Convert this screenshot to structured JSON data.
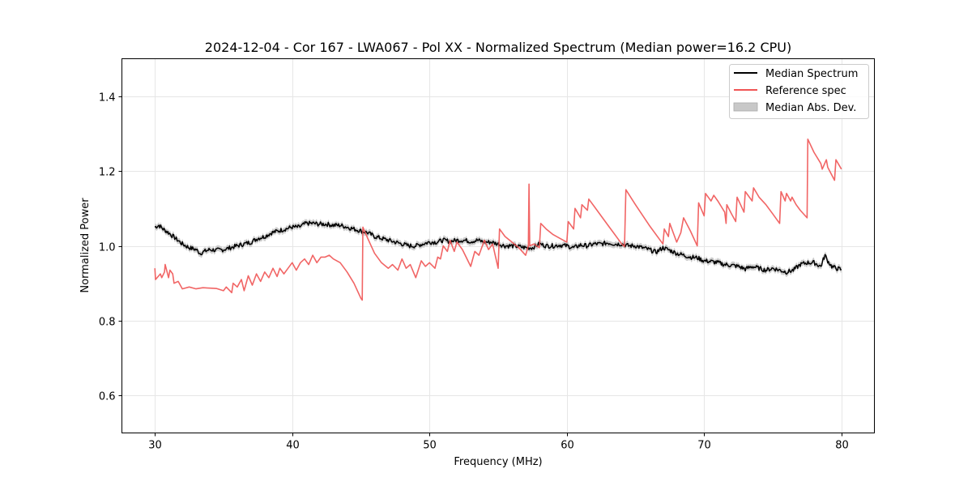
{
  "chart_data": {
    "type": "line",
    "title": "2024-12-04 - Cor 167 - LWA067 - Pol XX - Normalized Spectrum (Median power=16.2 CPU)",
    "xlabel": "Frequency (MHz)",
    "ylabel": "Normalized Power",
    "xlim": [
      27.6,
      82.4
    ],
    "ylim": [
      0.5,
      1.5
    ],
    "xticks": [
      30,
      40,
      50,
      60,
      70,
      80
    ],
    "xtick_labels": [
      "30",
      "40",
      "50",
      "60",
      "70",
      "80"
    ],
    "yticks": [
      0.6,
      0.8,
      1.0,
      1.2,
      1.4
    ],
    "ytick_labels": [
      "0.6",
      "0.8",
      "1.0",
      "1.2",
      "1.4"
    ],
    "grid": true,
    "legend_position": "top-right",
    "legend": [
      {
        "label": "Median Spectrum",
        "kind": "line",
        "color": "#000000"
      },
      {
        "label": "Reference spec",
        "kind": "line",
        "color": "#f05454"
      },
      {
        "label": "Median Abs. Dev.",
        "kind": "band",
        "color": "#c8c8c8"
      }
    ],
    "series": [
      {
        "name": "Median Spectrum",
        "color": "#000000",
        "x": [
          30.0,
          30.3,
          30.6,
          31.0,
          31.5,
          32.0,
          32.5,
          33.0,
          33.3,
          33.6,
          34.0,
          34.5,
          35.0,
          35.5,
          36.0,
          36.5,
          37.0,
          37.5,
          38.0,
          38.5,
          39.0,
          39.5,
          40.0,
          40.5,
          41.0,
          41.5,
          42.0,
          42.5,
          43.0,
          43.5,
          44.0,
          44.5,
          45.0,
          45.5,
          46.0,
          46.5,
          47.0,
          47.5,
          48.0,
          48.5,
          49.0,
          49.5,
          50.0,
          50.5,
          51.0,
          51.5,
          52.0,
          52.5,
          53.0,
          53.5,
          54.0,
          54.5,
          55.0,
          55.5,
          56.0,
          56.5,
          57.0,
          57.5,
          58.0,
          58.5,
          59.0,
          59.5,
          60.0,
          60.5,
          61.0,
          61.5,
          62.0,
          62.5,
          63.0,
          63.5,
          64.0,
          64.5,
          65.0,
          65.5,
          66.0,
          66.5,
          67.0,
          67.5,
          68.0,
          68.5,
          69.0,
          69.5,
          70.0,
          70.5,
          71.0,
          71.5,
          72.0,
          72.5,
          73.0,
          73.5,
          74.0,
          74.5,
          75.0,
          75.5,
          76.0,
          76.5,
          77.0,
          77.5,
          78.0,
          78.5,
          78.8,
          79.0,
          79.3,
          79.6,
          80.0
        ],
        "y": [
          1.05,
          1.055,
          1.045,
          1.035,
          1.02,
          1.005,
          0.995,
          0.99,
          0.98,
          0.985,
          0.99,
          0.988,
          0.99,
          0.995,
          1.0,
          1.005,
          1.01,
          1.02,
          1.025,
          1.035,
          1.04,
          1.045,
          1.05,
          1.05,
          1.06,
          1.06,
          1.058,
          1.058,
          1.055,
          1.055,
          1.05,
          1.045,
          1.04,
          1.035,
          1.025,
          1.02,
          1.015,
          1.01,
          1.005,
          1.0,
          1.0,
          1.005,
          1.01,
          1.01,
          1.015,
          1.012,
          1.015,
          1.015,
          1.012,
          1.015,
          1.01,
          1.01,
          1.005,
          1.0,
          1.0,
          0.998,
          0.995,
          0.995,
          1.005,
          1.0,
          1.0,
          1.002,
          1.0,
          0.995,
          1.002,
          1.0,
          1.005,
          1.005,
          1.008,
          1.005,
          1.005,
          1.0,
          1.0,
          0.995,
          0.99,
          0.983,
          0.995,
          0.988,
          0.98,
          0.975,
          0.97,
          0.968,
          0.96,
          0.958,
          0.955,
          0.95,
          0.948,
          0.945,
          0.938,
          0.945,
          0.94,
          0.935,
          0.94,
          0.935,
          0.93,
          0.935,
          0.95,
          0.955,
          0.955,
          0.945,
          0.975,
          0.96,
          0.945,
          0.94,
          0.937
        ]
      },
      {
        "name": "Reference spec",
        "color": "#f05454",
        "x": [
          30.0,
          30.05,
          30.4,
          30.5,
          30.7,
          30.75,
          31.0,
          31.1,
          31.3,
          31.4,
          31.7,
          32.0,
          32.5,
          33.0,
          33.5,
          34.0,
          34.5,
          35.0,
          35.2,
          35.6,
          35.7,
          36.0,
          36.3,
          36.5,
          36.8,
          37.1,
          37.4,
          37.7,
          38.0,
          38.3,
          38.6,
          38.9,
          39.1,
          39.4,
          39.7,
          40.0,
          40.3,
          40.6,
          40.9,
          41.2,
          41.5,
          41.8,
          42.1,
          42.4,
          42.7,
          43.0,
          43.5,
          44.0,
          44.5,
          45.0,
          45.1,
          45.15,
          45.5,
          46.0,
          46.5,
          47.0,
          47.3,
          47.7,
          48.0,
          48.3,
          48.6,
          49.0,
          49.4,
          49.7,
          50.0,
          50.4,
          50.6,
          50.8,
          51.0,
          51.3,
          51.5,
          51.8,
          52.0,
          52.4,
          53.0,
          53.3,
          53.6,
          54.0,
          54.3,
          54.6,
          55.0,
          55.1,
          55.5,
          56.0,
          56.5,
          57.0,
          57.2,
          57.25,
          57.3,
          57.6,
          58.0,
          58.1,
          58.5,
          59.0,
          59.5,
          60.0,
          60.1,
          60.5,
          60.6,
          61.0,
          61.1,
          61.5,
          61.6,
          62.0,
          62.5,
          63.0,
          63.5,
          64.0,
          64.2,
          64.3,
          65.0,
          66.0,
          67.0,
          67.1,
          67.4,
          67.5,
          68.0,
          68.3,
          68.5,
          69.0,
          69.5,
          69.6,
          70.0,
          70.1,
          70.5,
          70.7,
          71.0,
          71.5,
          71.6,
          71.65,
          72.0,
          72.3,
          72.4,
          72.9,
          73.0,
          73.5,
          73.6,
          74.0,
          74.5,
          75.0,
          75.5,
          75.6,
          75.9,
          76.0,
          76.3,
          76.4,
          76.7,
          77.0,
          77.5,
          77.55,
          78.0,
          78.5,
          78.6,
          78.9,
          79.0,
          79.5,
          79.6,
          80.0
        ],
        "y": [
          0.94,
          0.91,
          0.925,
          0.915,
          0.93,
          0.95,
          0.915,
          0.935,
          0.925,
          0.9,
          0.905,
          0.885,
          0.89,
          0.885,
          0.888,
          0.887,
          0.886,
          0.88,
          0.89,
          0.875,
          0.9,
          0.89,
          0.91,
          0.88,
          0.92,
          0.895,
          0.925,
          0.905,
          0.93,
          0.915,
          0.94,
          0.918,
          0.94,
          0.925,
          0.94,
          0.955,
          0.935,
          0.955,
          0.965,
          0.95,
          0.975,
          0.955,
          0.97,
          0.97,
          0.975,
          0.965,
          0.955,
          0.93,
          0.9,
          0.86,
          0.855,
          1.05,
          1.02,
          0.98,
          0.955,
          0.94,
          0.95,
          0.935,
          0.965,
          0.94,
          0.95,
          0.915,
          0.96,
          0.945,
          0.955,
          0.94,
          0.97,
          0.965,
          1.0,
          0.985,
          1.015,
          0.985,
          1.01,
          0.99,
          0.945,
          0.985,
          0.975,
          1.015,
          0.99,
          1.005,
          0.94,
          1.045,
          1.025,
          1.01,
          0.995,
          0.975,
          1.0,
          1.165,
          1.0,
          1.005,
          0.995,
          1.06,
          1.045,
          1.03,
          1.02,
          1.01,
          1.065,
          1.045,
          1.1,
          1.075,
          1.11,
          1.095,
          1.125,
          1.105,
          1.08,
          1.055,
          1.03,
          1.005,
          0.998,
          1.15,
          1.11,
          1.055,
          1.005,
          1.045,
          1.025,
          1.06,
          1.01,
          1.035,
          1.075,
          1.04,
          1.0,
          1.115,
          1.08,
          1.14,
          1.12,
          1.135,
          1.12,
          1.09,
          1.06,
          1.11,
          1.085,
          1.065,
          1.13,
          1.09,
          1.145,
          1.12,
          1.155,
          1.13,
          1.11,
          1.085,
          1.06,
          1.145,
          1.12,
          1.14,
          1.12,
          1.13,
          1.11,
          1.095,
          1.075,
          1.285,
          1.25,
          1.22,
          1.205,
          1.23,
          1.21,
          1.175,
          1.23,
          1.205
        ]
      }
    ],
    "band": {
      "name": "Median Abs. Dev.",
      "color": "#c8c8c8",
      "half_width": 0.008
    }
  }
}
